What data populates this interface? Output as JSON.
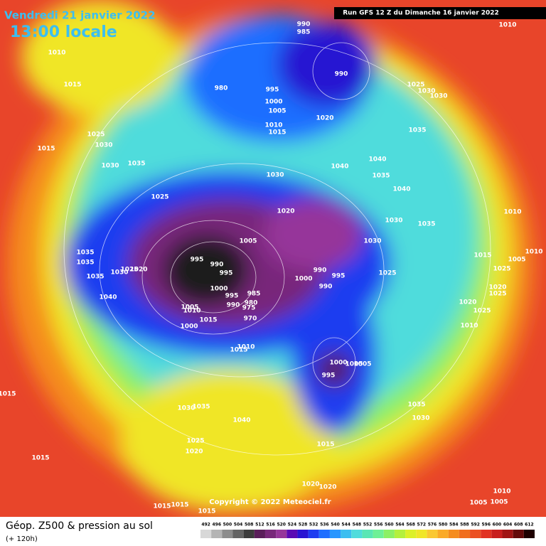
{
  "header": {
    "date": "Vendredi 21 janvier 2022",
    "time": "13:00 locale",
    "run": "Run GFS 12 Z du Dimanche 16 janvier 2022"
  },
  "copyright": "Copyright © 2022 Meteociel.fr",
  "footer": {
    "title": "Géop. Z500 & pression au sol",
    "lead": "(+ 120h)"
  },
  "isobar_labels": [
    990,
    985,
    1010,
    1010,
    1015,
    990,
    980,
    995,
    1000,
    1005,
    1020,
    1010,
    1015,
    1025,
    1030,
    1030,
    1035,
    1025,
    1030,
    1015,
    1030,
    1035,
    1040,
    1040,
    1035,
    1030,
    1040,
    1025,
    1020,
    1030,
    1035,
    1010,
    1005,
    1030,
    1035,
    1010,
    1015,
    995,
    990,
    995,
    1035,
    1030,
    1025,
    1020,
    990,
    1000,
    995,
    1025,
    1025,
    1005,
    1035,
    990,
    1000,
    985,
    995,
    980,
    975,
    990,
    1040,
    1020,
    1025,
    1020,
    1025,
    1010,
    1005,
    1015,
    970,
    1010,
    1000,
    1005,
    1015,
    1010,
    1000,
    1005,
    995,
    1015,
    1030,
    1035,
    1035,
    1040,
    1030,
    1025,
    1020,
    1015,
    1015,
    1020,
    1020,
    1010,
    1005,
    1005,
    1015,
    1015,
    1015
  ],
  "legend": {
    "levels": [
      492,
      496,
      500,
      504,
      508,
      512,
      516,
      520,
      524,
      528,
      532,
      536,
      540,
      544,
      548,
      552,
      556,
      560,
      564,
      568,
      572,
      576,
      580,
      584,
      588,
      592,
      596,
      600,
      604,
      608,
      612
    ],
    "colors": [
      "#d8d8d8",
      "#b4b4b4",
      "#8c8c8c",
      "#646464",
      "#3c3c3c",
      "#5a1e5a",
      "#78287a",
      "#96369a",
      "#5a0ab4",
      "#2814d2",
      "#1e3cf0",
      "#1e6eff",
      "#2896ff",
      "#3cbef0",
      "#50dcdc",
      "#5ae6b4",
      "#6ef096",
      "#8cf064",
      "#b4f03c",
      "#dcf028",
      "#f0e628",
      "#fac832",
      "#faaa28",
      "#f58c1e",
      "#f06e1e",
      "#eb5023",
      "#e13223",
      "#c81e1e",
      "#a01414",
      "#640a0a",
      "#1e0000"
    ]
  }
}
